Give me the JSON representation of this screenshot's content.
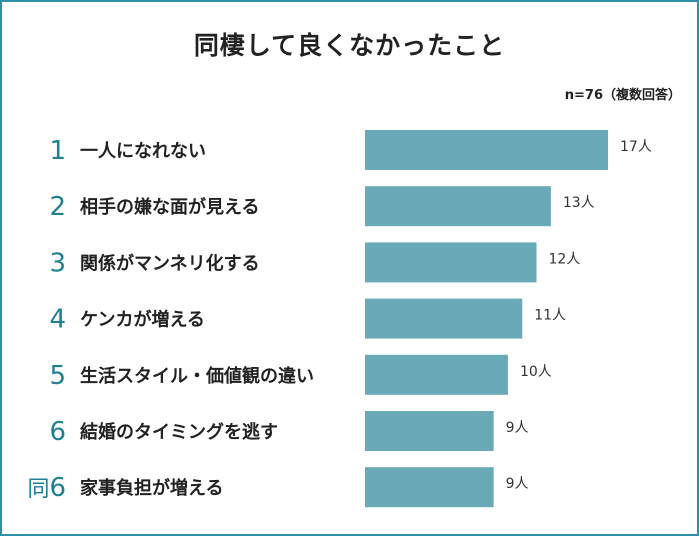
{
  "title": "同棲して良くなかったこと",
  "note": "n=76（複数回答）",
  "colors": {
    "border": "#2e8fa8",
    "bar": "#6aa9b8",
    "rank": "#1f7f93"
  },
  "chart_data": {
    "type": "bar",
    "orientation": "horizontal",
    "title": "同棲して良くなかったこと",
    "unit": "人",
    "xlim": [
      0,
      17
    ],
    "categories": [
      "一人になれない",
      "相手の嫌な面が見える",
      "関係がマンネリ化する",
      "ケンカが増える",
      "生活スタイル・価値観の違い",
      "結婚のタイミングを逃す",
      "家事負担が増える"
    ],
    "ranks": [
      "1",
      "2",
      "3",
      "4",
      "5",
      "6",
      "同6"
    ],
    "values": [
      17,
      13,
      12,
      11,
      10,
      9,
      9
    ],
    "value_labels": [
      "17人",
      "13人",
      "12人",
      "11人",
      "10人",
      "9人",
      "9人"
    ]
  }
}
